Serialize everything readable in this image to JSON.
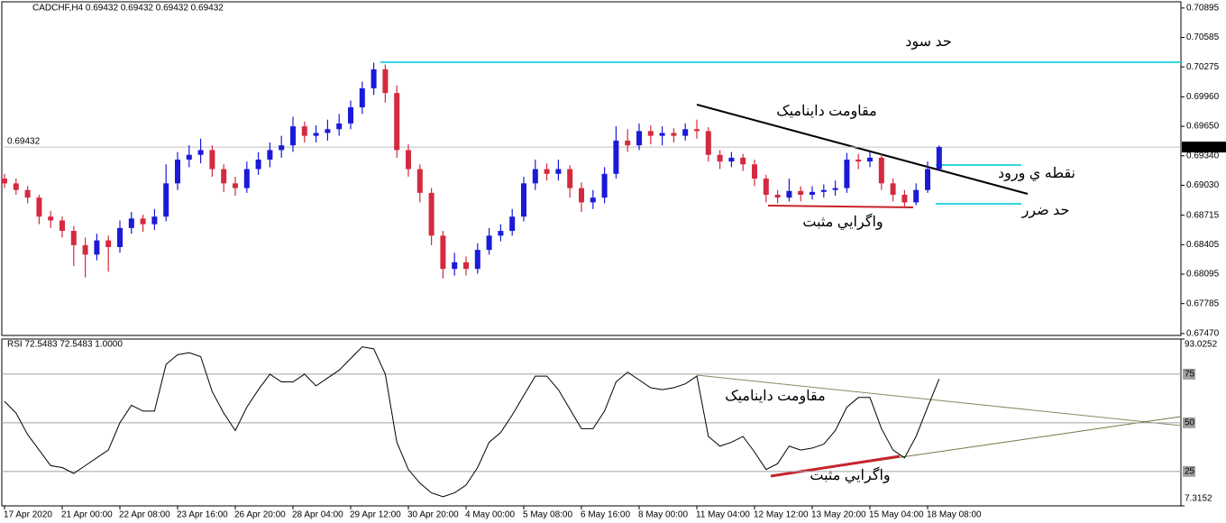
{
  "chart_data": [
    {
      "type": "candlestick",
      "header": "CADCHF,H4  0.69432 0.69432 0.69432 0.69432",
      "categories": [
        "17 Apr 2020",
        null,
        null,
        null,
        null,
        "21 Apr 00:00",
        null,
        null,
        null,
        null,
        "22 Apr 08:00",
        null,
        null,
        null,
        null,
        "23 Apr 16:00",
        null,
        null,
        null,
        null,
        "26 Apr 20:00",
        null,
        null,
        null,
        null,
        "28 Apr 04:00",
        null,
        null,
        null,
        null,
        "29 Apr 12:00",
        null,
        null,
        null,
        null,
        "30 Apr 20:00",
        null,
        null,
        null,
        null,
        "4 May 00:00",
        null,
        null,
        null,
        null,
        "5 May 08:00",
        null,
        null,
        null,
        null,
        "6 May 16:00",
        null,
        null,
        null,
        null,
        "8 May 00:00",
        null,
        null,
        null,
        null,
        "11 May 04:00",
        null,
        null,
        null,
        null,
        "12 May 12:00",
        null,
        null,
        null,
        null,
        "13 May 20:00",
        null,
        null,
        null,
        null,
        "15 May 04:00",
        null,
        null,
        null,
        null,
        "18 May 08:00",
        null
      ],
      "open": [
        0.691,
        0.6905,
        0.6898,
        0.689,
        0.687,
        0.6866,
        0.6855,
        0.684,
        0.683,
        0.6845,
        0.6838,
        0.6858,
        0.6868,
        0.6862,
        0.687,
        0.6905,
        0.693,
        0.6935,
        0.694,
        0.692,
        0.6905,
        0.69,
        0.692,
        0.693,
        0.694,
        0.6945,
        0.6965,
        0.6955,
        0.6958,
        0.6962,
        0.6968,
        0.6985,
        0.7005,
        0.7025,
        0.7,
        0.694,
        0.692,
        0.6895,
        0.685,
        0.6815,
        0.6822,
        0.6815,
        0.6835,
        0.685,
        0.6855,
        0.687,
        0.6905,
        0.692,
        0.6915,
        0.692,
        0.69,
        0.6885,
        0.689,
        0.6915,
        0.695,
        0.6945,
        0.696,
        0.6955,
        0.6958,
        0.6955,
        0.6962,
        0.696,
        0.6935,
        0.6928,
        0.6932,
        0.6925,
        0.691,
        0.6893,
        0.689,
        0.6897,
        0.6893,
        0.6896,
        0.6898,
        0.69,
        0.693,
        0.6928,
        0.6932,
        0.6905,
        0.6893,
        0.6885,
        0.6898,
        0.692
      ],
      "high": [
        0.6915,
        0.691,
        0.6902,
        0.6893,
        0.6876,
        0.687,
        0.686,
        0.6848,
        0.6852,
        0.685,
        0.6866,
        0.6875,
        0.6872,
        0.6878,
        0.6925,
        0.6938,
        0.6945,
        0.6952,
        0.6945,
        0.6925,
        0.6912,
        0.6928,
        0.6938,
        0.6948,
        0.6955,
        0.6975,
        0.697,
        0.6966,
        0.6972,
        0.6978,
        0.6992,
        0.7012,
        0.7032,
        0.703,
        0.7008,
        0.6946,
        0.6925,
        0.69,
        0.6855,
        0.6832,
        0.6828,
        0.6842,
        0.6858,
        0.6862,
        0.6878,
        0.6912,
        0.693,
        0.6926,
        0.693,
        0.6924,
        0.6906,
        0.6898,
        0.6922,
        0.6965,
        0.6962,
        0.6968,
        0.6966,
        0.6965,
        0.6963,
        0.6968,
        0.6972,
        0.6964,
        0.694,
        0.6938,
        0.6936,
        0.693,
        0.6914,
        0.6898,
        0.691,
        0.6902,
        0.6902,
        0.6904,
        0.6908,
        0.6937,
        0.6936,
        0.6938,
        0.6936,
        0.691,
        0.6898,
        0.6905,
        0.6928,
        0.6945
      ],
      "low": [
        0.69,
        0.6893,
        0.6884,
        0.6862,
        0.6858,
        0.6848,
        0.6818,
        0.6806,
        0.6824,
        0.6812,
        0.6832,
        0.6852,
        0.6854,
        0.6856,
        0.6865,
        0.6898,
        0.6922,
        0.6926,
        0.6912,
        0.6896,
        0.6892,
        0.6895,
        0.6914,
        0.6922,
        0.6932,
        0.6938,
        0.6948,
        0.6948,
        0.695,
        0.6955,
        0.6962,
        0.6978,
        0.6998,
        0.699,
        0.6932,
        0.6912,
        0.6885,
        0.684,
        0.6805,
        0.6808,
        0.6808,
        0.681,
        0.683,
        0.6844,
        0.685,
        0.6865,
        0.6898,
        0.6908,
        0.6908,
        0.689,
        0.6875,
        0.6878,
        0.6884,
        0.691,
        0.6938,
        0.694,
        0.6946,
        0.6945,
        0.6948,
        0.695,
        0.6952,
        0.6928,
        0.692,
        0.6922,
        0.6918,
        0.6902,
        0.6885,
        0.6884,
        0.6886,
        0.6886,
        0.6888,
        0.689,
        0.6892,
        0.6895,
        0.692,
        0.6922,
        0.6898,
        0.6886,
        0.688,
        0.6882,
        0.6895,
        0.6918
      ],
      "close": [
        0.6905,
        0.6898,
        0.689,
        0.687,
        0.6866,
        0.6855,
        0.684,
        0.683,
        0.6845,
        0.6838,
        0.6858,
        0.6868,
        0.6862,
        0.687,
        0.6905,
        0.693,
        0.6935,
        0.694,
        0.692,
        0.6905,
        0.69,
        0.692,
        0.693,
        0.694,
        0.6945,
        0.6965,
        0.6955,
        0.6958,
        0.6962,
        0.6968,
        0.6985,
        0.7005,
        0.7025,
        0.7,
        0.694,
        0.692,
        0.6895,
        0.685,
        0.6815,
        0.6822,
        0.6815,
        0.6835,
        0.685,
        0.6855,
        0.687,
        0.6905,
        0.692,
        0.6915,
        0.692,
        0.69,
        0.6885,
        0.689,
        0.6915,
        0.695,
        0.6945,
        0.696,
        0.6955,
        0.6958,
        0.6955,
        0.6962,
        0.696,
        0.6935,
        0.6928,
        0.6932,
        0.6925,
        0.691,
        0.6893,
        0.689,
        0.6897,
        0.6893,
        0.6896,
        0.6898,
        0.69,
        0.693,
        0.6928,
        0.6932,
        0.6905,
        0.6893,
        0.6885,
        0.6898,
        0.692,
        0.69432
      ],
      "up_color": "#1a1ad8",
      "down_color": "#d42a3f",
      "ylim": [
        0.6745,
        0.7096
      ],
      "yticks": [
        0.70895,
        0.70585,
        0.70275,
        {
          "value": 0.6996,
          "label": "0.69960"
        },
        {
          "value": 0.6965,
          "label": "0.69650"
        },
        {
          "value": 0.6934,
          "label": "0.69340"
        },
        {
          "value": 0.6903,
          "label": "0.69030"
        },
        0.68715,
        0.68405,
        0.68095,
        0.67785,
        {
          "value": 0.6747,
          "label": "0.67470"
        }
      ],
      "last_price": 0.69432,
      "annotations": [
        "حد سود",
        "مقاومت دايناميک",
        "نقطه ي ورود",
        "حد ضرر",
        "واگرايي مثبت"
      ]
    },
    {
      "type": "line",
      "header": "RSI 72.5483 72.5483 1.0000",
      "color": "#000000",
      "values": [
        61,
        55,
        44,
        36,
        28,
        27,
        24,
        28,
        32,
        36,
        50,
        59,
        56,
        56,
        80,
        85,
        86,
        84,
        66,
        55,
        46,
        58,
        67,
        75,
        71,
        71,
        75,
        69,
        73,
        77,
        83,
        89,
        88,
        75,
        40,
        26,
        19,
        14,
        12,
        14,
        18,
        27,
        40,
        45,
        54,
        64,
        74,
        74,
        67,
        57,
        47,
        47,
        56,
        71,
        76,
        72,
        68,
        67,
        68,
        70,
        74,
        43,
        38,
        40,
        43,
        35,
        26,
        29,
        38,
        36,
        37,
        39,
        46,
        58,
        63,
        63,
        47,
        36,
        32,
        43,
        58,
        72.5483
      ],
      "ylim": [
        7.3152,
        93.0252
      ],
      "yticks": [
        93.0252,
        75,
        50,
        25,
        7.3152
      ],
      "annotations": [
        "مقاومت دايناميک",
        "واگرايي مثبت"
      ]
    }
  ]
}
